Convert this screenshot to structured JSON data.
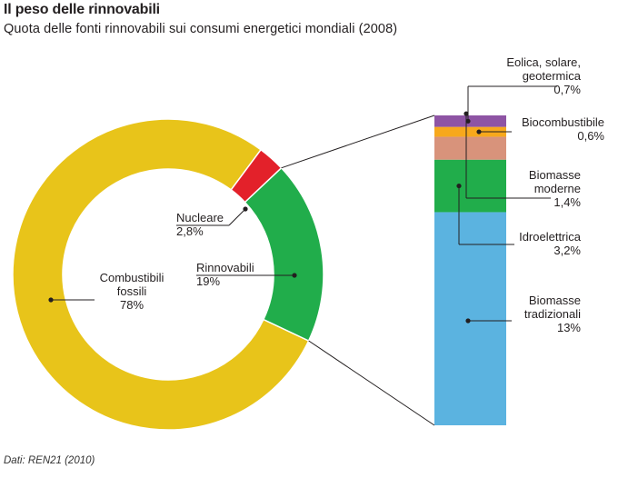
{
  "title": "Il peso delle rinnovabili",
  "subtitle": "Quota delle fonti rinnovabili sui consumi energetici mondiali (2008)",
  "source": "Dati: REN21 (2010)",
  "colors": {
    "fossili": "#e8c41a",
    "nucleare": "#e3212a",
    "rinnovabili": "#21ad4b",
    "eolica": "#8e54a4",
    "biocombustibile": "#f7a81c",
    "idroelettrica": "#21ad4b",
    "biomasse_moderne": "#d8937b",
    "biomasse_tradizionali": "#5bb3e0"
  },
  "chart_data": [
    {
      "type": "pie",
      "variant": "donut",
      "title": "",
      "slices": [
        {
          "key": "fossili",
          "label_lines": [
            "Combustibili",
            "fossili"
          ],
          "value_label": "78%",
          "value": 78
        },
        {
          "key": "rinnovabili",
          "label_lines": [
            "Rinnovabili"
          ],
          "value_label": "19%",
          "value": 19
        },
        {
          "key": "nucleare",
          "label_lines": [
            "Nucleare"
          ],
          "value_label": "2,8%",
          "value": 2.8
        }
      ]
    },
    {
      "type": "bar",
      "variant": "stacked-column",
      "title": "",
      "segments": [
        {
          "key": "biomasse_tradizionali",
          "label_lines": [
            "Biomasse",
            "tradizionali"
          ],
          "value_label": "13%",
          "value": 13
        },
        {
          "key": "idroelettrica",
          "label_lines": [
            "Idroelettrica"
          ],
          "value_label": "3,2%",
          "value": 3.2
        },
        {
          "key": "biomasse_moderne",
          "label_lines": [
            "Biomasse",
            "moderne"
          ],
          "value_label": "1,4%",
          "value": 1.4
        },
        {
          "key": "biocombustibile",
          "label_lines": [
            "Biocombustibile"
          ],
          "value_label": "0,6%",
          "value": 0.6
        },
        {
          "key": "eolica",
          "label_lines": [
            "Eolica, solare,",
            "geotermica"
          ],
          "value_label": "0,7%",
          "value": 0.7
        }
      ]
    }
  ]
}
